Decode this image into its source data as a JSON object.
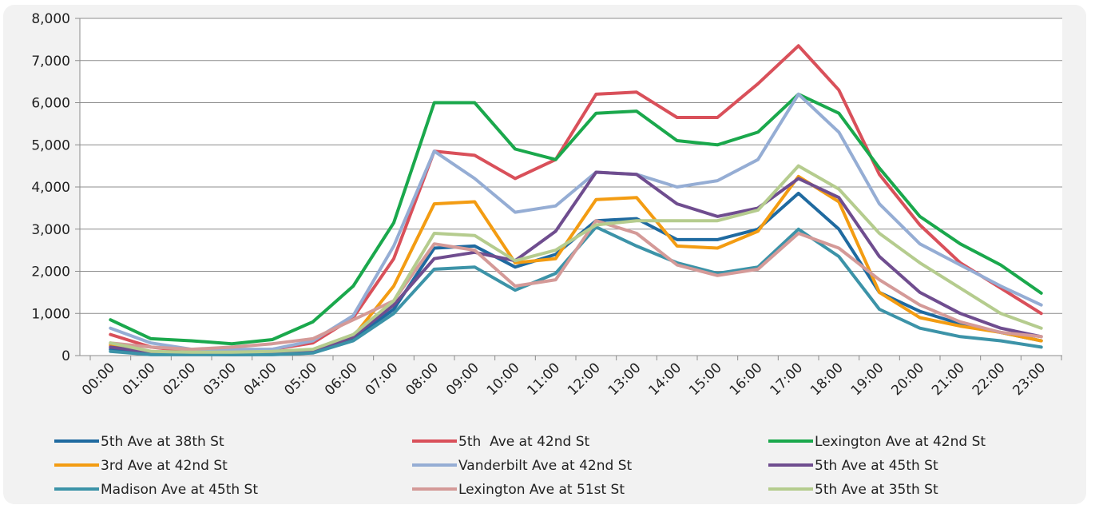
{
  "chart_data": {
    "type": "line",
    "categories": [
      "00:00",
      "01:00",
      "02:00",
      "03:00",
      "04:00",
      "05:00",
      "06:00",
      "07:00",
      "08:00",
      "09:00",
      "10:00",
      "11:00",
      "12:00",
      "13:00",
      "14:00",
      "15:00",
      "16:00",
      "17:00",
      "18:00",
      "19:00",
      "20:00",
      "21:00",
      "22:00",
      "23:00"
    ],
    "ylim": [
      0,
      8000
    ],
    "yticks": [
      0,
      {
        "value": 1000,
        "label": "1,000"
      },
      {
        "value": 2000,
        "label": "2,000"
      },
      {
        "value": 3000,
        "label": "3,000"
      },
      {
        "value": 4000,
        "label": "4,000"
      },
      {
        "value": 5000,
        "label": "5,000"
      },
      {
        "value": 6000,
        "label": "6,000"
      },
      {
        "value": 7000,
        "label": "7,000"
      },
      {
        "value": 8000,
        "label": "8,000"
      }
    ],
    "grid": true,
    "legend": "bottom",
    "series": [
      {
        "name": "5th Ave at 38th St",
        "color": "#1f6aa0",
        "values": [
          150,
          50,
          30,
          20,
          30,
          80,
          400,
          1100,
          2550,
          2600,
          2100,
          2400,
          3200,
          3250,
          2750,
          2750,
          3000,
          3850,
          3000,
          1500,
          1050,
          750,
          550,
          350
        ]
      },
      {
        "name": "5th  Ave at 42nd St",
        "color": "#d9505a",
        "values": [
          500,
          200,
          100,
          100,
          150,
          300,
          900,
          2300,
          4850,
          4750,
          4200,
          4650,
          6200,
          6250,
          5650,
          5650,
          6450,
          7350,
          6300,
          4300,
          3100,
          2200,
          1600,
          1000
        ]
      },
      {
        "name": "Lexington Ave at 42nd St",
        "color": "#1aa84c",
        "values": [
          850,
          400,
          350,
          280,
          380,
          800,
          1650,
          3150,
          6000,
          6000,
          4900,
          4650,
          5750,
          5800,
          5100,
          5000,
          5300,
          6200,
          5750,
          4450,
          3300,
          2650,
          2150,
          1480
        ]
      },
      {
        "name": "3rd Ave at 42nd St",
        "color": "#f39c12",
        "values": [
          250,
          100,
          50,
          50,
          80,
          100,
          450,
          1650,
          3600,
          3650,
          2200,
          2300,
          3700,
          3750,
          2600,
          2550,
          2950,
          4250,
          3650,
          1500,
          900,
          700,
          550,
          350
        ]
      },
      {
        "name": "Vanderbilt Ave at 42nd St",
        "color": "#95add4",
        "values": [
          650,
          300,
          150,
          150,
          150,
          350,
          950,
          2600,
          4850,
          4200,
          3400,
          3550,
          4350,
          4300,
          4000,
          4150,
          4650,
          6200,
          5300,
          3600,
          2650,
          2150,
          1650,
          1200
        ]
      },
      {
        "name": "5th Ave at 45th St",
        "color": "#6f4d8f",
        "values": [
          200,
          80,
          50,
          30,
          50,
          100,
          450,
          1200,
          2300,
          2450,
          2250,
          2950,
          4350,
          4300,
          3600,
          3300,
          3500,
          4200,
          3750,
          2350,
          1500,
          1000,
          650,
          450
        ]
      },
      {
        "name": "Madison Ave at 45th St",
        "color": "#3c93a8",
        "values": [
          100,
          20,
          20,
          20,
          20,
          60,
          350,
          1000,
          2050,
          2100,
          1550,
          1950,
          3050,
          2600,
          2200,
          1950,
          2100,
          3000,
          2350,
          1100,
          650,
          450,
          350,
          200
        ]
      },
      {
        "name": "Lexington Ave at 51st St",
        "color": "#d49a98",
        "values": [
          300,
          200,
          150,
          200,
          280,
          400,
          850,
          1300,
          2650,
          2500,
          1650,
          1800,
          3200,
          2900,
          2150,
          1900,
          2050,
          2900,
          2550,
          1800,
          1200,
          800,
          550,
          450
        ]
      },
      {
        "name": "5th Ave at 35th St",
        "color": "#b5cc8e",
        "values": [
          300,
          100,
          80,
          80,
          100,
          150,
          500,
          1300,
          2900,
          2850,
          2250,
          2500,
          3100,
          3200,
          3200,
          3200,
          3450,
          4500,
          3950,
          2900,
          2200,
          1600,
          1000,
          650
        ]
      }
    ]
  }
}
